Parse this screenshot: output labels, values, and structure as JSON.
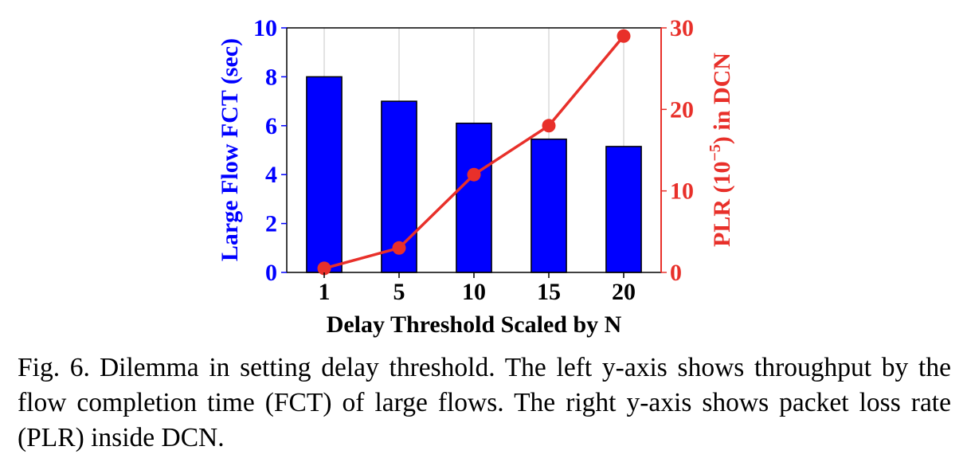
{
  "chart_data": {
    "type": "bar+line",
    "categories": [
      "1",
      "5",
      "10",
      "15",
      "20"
    ],
    "xlabel": "Delay Threshold Scaled by N",
    "bar_series": {
      "axis": "left",
      "values": [
        8.0,
        7.0,
        6.1,
        5.45,
        5.15
      ],
      "color": "#0000ff"
    },
    "line_series": {
      "axis": "right",
      "values": [
        0.5,
        3.0,
        12.0,
        18.0,
        29.0
      ],
      "color": "#e8302a"
    },
    "left_axis": {
      "label": "Large Flow FCT (sec)",
      "ylim": [
        0,
        10
      ],
      "ticks": [
        "0",
        "2",
        "4",
        "6",
        "8",
        "10"
      ],
      "color": "#0000ff"
    },
    "right_axis": {
      "label_prefix": "PLR (10",
      "label_exponent": "−5",
      "label_suffix": ") in DCN",
      "ylim": [
        0,
        30
      ],
      "ticks": [
        "0",
        "10",
        "20",
        "30"
      ],
      "color": "#e8302a"
    },
    "grid": "vertical"
  },
  "caption": {
    "label": "Fig. 6.",
    "text": "Dilemma in setting delay threshold. The left y-axis shows throughput by the flow completion time (FCT) of large flows. The right y-axis shows packet loss rate (PLR) inside DCN."
  }
}
